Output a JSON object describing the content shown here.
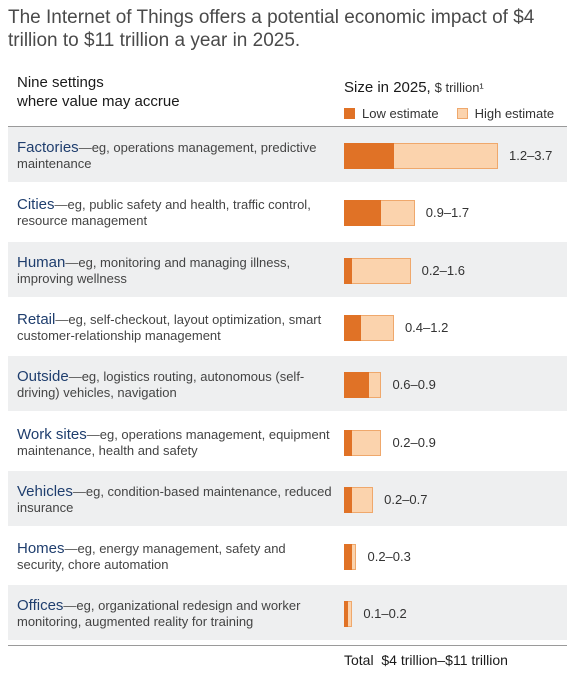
{
  "title": "The Internet of Things offers a potential economic impact of $4 trillion to $11 trillion a year in 2025.",
  "header": {
    "settings_line1": "Nine settings",
    "settings_line2": "where value may accrue",
    "size_label": "Size in 2025,",
    "size_unit": "$ trillion¹"
  },
  "legend": {
    "low": "Low estimate",
    "high": "High estimate"
  },
  "colors": {
    "low": "#e07226",
    "high": "#fbd3ad",
    "row_shade": "#eeeff0",
    "name_text": "#1f3e6e"
  },
  "chart_data": {
    "type": "bar",
    "orientation": "horizontal",
    "stacked_range": true,
    "categories": [
      "Factories",
      "Cities",
      "Human",
      "Retail",
      "Outside",
      "Work sites",
      "Vehicles",
      "Homes",
      "Offices"
    ],
    "descriptions": [
      "eg, operations management, predictive maintenance",
      "eg, public safety and health, traffic control, resource management",
      "eg, monitoring and managing illness, improving wellness",
      "eg, self-checkout, layout optimization, smart customer-relationship management",
      "eg, logistics routing, autonomous (self-driving) vehicles, navigation",
      "eg, operations management, equipment maintenance, health and safety",
      "eg, condition-based maintenance, reduced insurance",
      "eg, energy management, safety and security, chore automation",
      "eg, organizational redesign and worker monitoring, augmented reality for training"
    ],
    "series": [
      {
        "name": "Low estimate",
        "values": [
          1.2,
          0.9,
          0.2,
          0.4,
          0.6,
          0.2,
          0.2,
          0.2,
          0.1
        ]
      },
      {
        "name": "High estimate",
        "values": [
          3.7,
          1.7,
          1.6,
          1.2,
          0.9,
          0.9,
          0.7,
          0.3,
          0.2
        ]
      }
    ],
    "range_labels": [
      "1.2–3.7",
      "0.9–1.7",
      "0.2–1.6",
      "0.4–1.2",
      "0.6–0.9",
      "0.2–0.9",
      "0.2–0.7",
      "0.2–0.3",
      "0.1–0.2"
    ],
    "xlim": [
      0,
      3.7
    ]
  },
  "total": {
    "label": "Total",
    "value": "$4 trillion–$11 trillion"
  }
}
